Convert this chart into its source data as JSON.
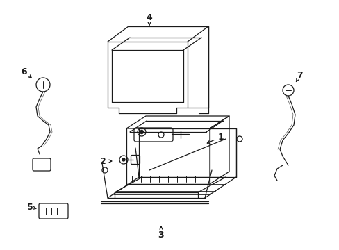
{
  "background_color": "#ffffff",
  "line_color": "#1a1a1a",
  "line_width": 0.9,
  "fig_width": 4.89,
  "fig_height": 3.6,
  "dpi": 100
}
